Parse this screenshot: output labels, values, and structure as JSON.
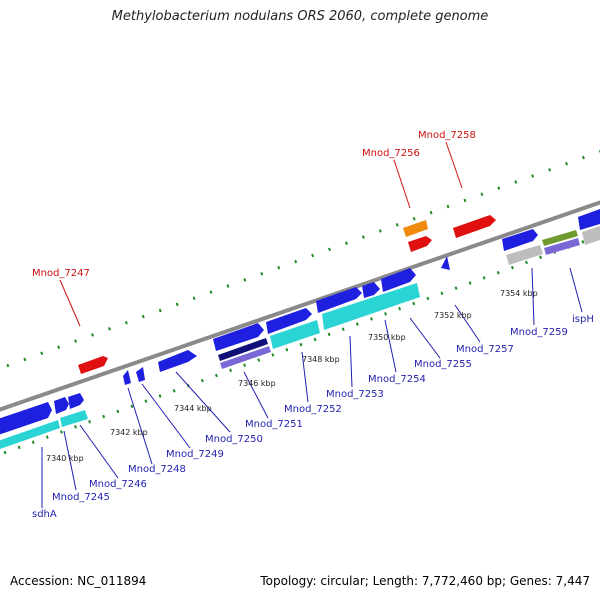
{
  "title": "Methylobacterium nodulans ORS 2060, complete genome",
  "accession": "Accession: NC_011894",
  "summary": "Topology: circular; Length: 7,772,460 bp; Genes: 7,447",
  "colors": {
    "forward_gene": "#1f1fe0",
    "reverse_gene": "#1f1fe0",
    "cds_cyan": "#2ad4d4",
    "cds_purple": "#7b66d6",
    "dark_navy": "#101078",
    "rna_red": "#e01010",
    "rna_orange": "#f08a0a",
    "gray_feature": "#bdbdbd",
    "olive_feature": "#6f9a2f",
    "backbone": "#8a8a8a",
    "tick_green": "#1e8a1e",
    "gene_label_blue": "#1f1fb0",
    "gene_label_red": "#d01010"
  },
  "tick_labels": [
    "7340 kbp",
    "7342 kbp",
    "7344 kbp",
    "7346 kbp",
    "7348 kbp",
    "7350 kbp",
    "7352 kbp",
    "7354 kbp"
  ],
  "gene_labels": [
    {
      "text": "sdhA",
      "kind": "blue"
    },
    {
      "text": "Mnod_7245",
      "kind": "blue"
    },
    {
      "text": "Mnod_7246",
      "kind": "blue"
    },
    {
      "text": "Mnod_7248",
      "kind": "blue"
    },
    {
      "text": "Mnod_7249",
      "kind": "blue"
    },
    {
      "text": "Mnod_7250",
      "kind": "blue"
    },
    {
      "text": "Mnod_7251",
      "kind": "blue"
    },
    {
      "text": "Mnod_7252",
      "kind": "blue"
    },
    {
      "text": "Mnod_7253",
      "kind": "blue"
    },
    {
      "text": "Mnod_7254",
      "kind": "blue"
    },
    {
      "text": "Mnod_7255",
      "kind": "blue"
    },
    {
      "text": "Mnod_7257",
      "kind": "blue"
    },
    {
      "text": "Mnod_7259",
      "kind": "blue"
    },
    {
      "text": "ispH",
      "kind": "blue"
    },
    {
      "text": "Mnod_7247",
      "kind": "red"
    },
    {
      "text": "Mnod_7256",
      "kind": "red"
    },
    {
      "text": "Mnod_7258",
      "kind": "red"
    }
  ]
}
